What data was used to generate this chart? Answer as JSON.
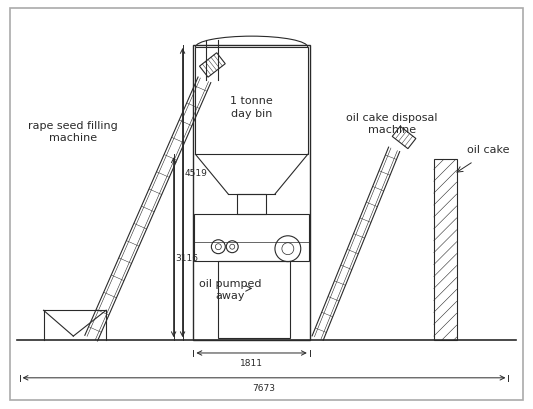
{
  "bg_color": "#ffffff",
  "line_color": "#2a2a2a",
  "border_color": "#888888",
  "labels": {
    "rape_seed_line1": "rape seed filling",
    "rape_seed_line2": "machine",
    "day_bin_line1": "1 tonne",
    "day_bin_line2": "day bin",
    "oil_pumped_line1": "oil pumped",
    "oil_pumped_line2": "away",
    "oil_cake_machine_line1": "oil cake disposal",
    "oil_cake_machine_line2": "machine",
    "oil_cake": "oil cake",
    "dim_4519": "4519",
    "dim_3116": "3116",
    "dim_1811": "1811",
    "dim_7673": "7673"
  },
  "figsize": [
    5.33,
    4.1
  ],
  "dpi": 100
}
